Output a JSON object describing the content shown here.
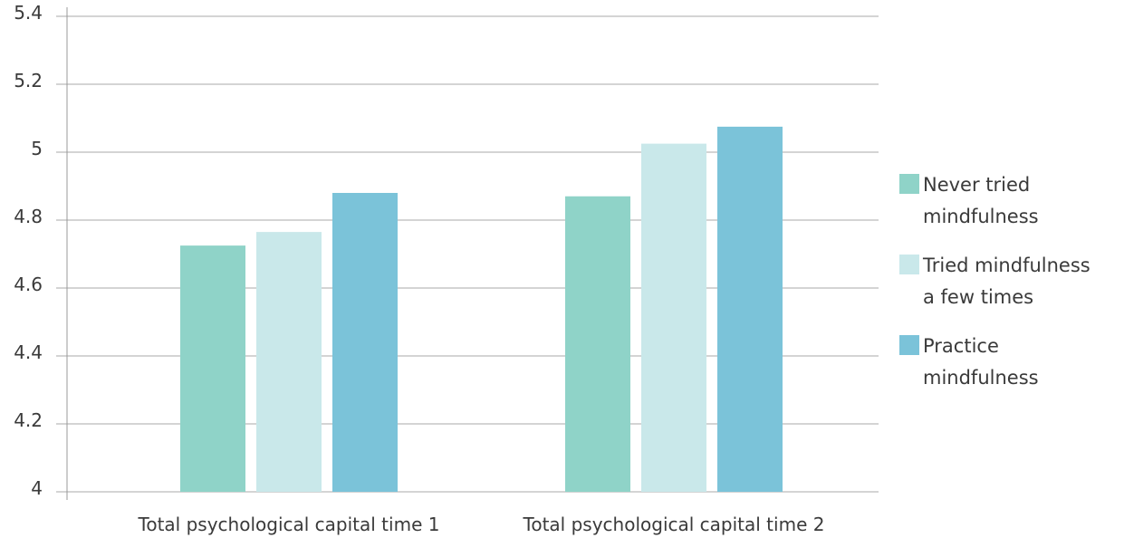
{
  "chart_data": {
    "type": "bar",
    "categories": [
      "Total psychological capital time 1",
      "Total psychological capital time 2"
    ],
    "series": [
      {
        "name": "Never tried mindfulness",
        "legend_lines": [
          "Never tried",
          "mindfulness"
        ],
        "color": "#8fd3c8",
        "values": [
          4.725,
          4.87
        ]
      },
      {
        "name": "Tried mindfulness a few times",
        "legend_lines": [
          "Tried mindfulness",
          "a few times"
        ],
        "color": "#c9e8ea",
        "values": [
          4.765,
          5.025
        ]
      },
      {
        "name": "Practice mindfulness",
        "legend_lines": [
          "Practice",
          "mindfulness"
        ],
        "color": "#7bc3d9",
        "values": [
          4.88,
          5.075
        ]
      }
    ],
    "yticks": [
      "4",
      "4.2",
      "4.4",
      "4.6",
      "4.8",
      "5",
      "5.2",
      "5.4"
    ],
    "ylim": [
      4,
      5.4
    ],
    "grid": true,
    "legend_position": "right"
  }
}
